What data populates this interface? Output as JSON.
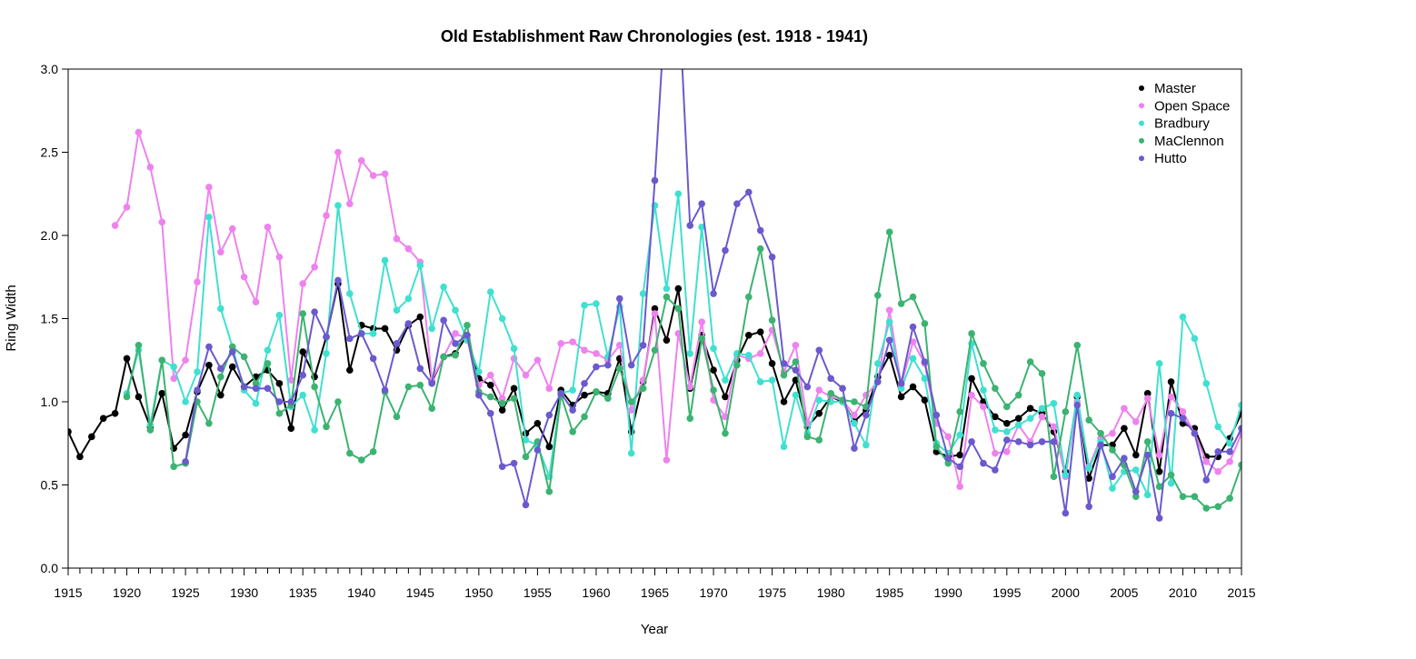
{
  "chart_data": {
    "type": "line",
    "title": "Old Establishment Raw Chronologies (est. 1918 - 1941)",
    "xlabel": "Year",
    "ylabel": "Ring Width",
    "xlim": [
      1915,
      2015
    ],
    "ylim": [
      0.0,
      3.0
    ],
    "x_ticks": [
      1915,
      1916,
      1917,
      1918,
      1919,
      1920,
      1921,
      1922,
      1923,
      1924,
      1925,
      1926,
      1927,
      1928,
      1929,
      1930,
      1931,
      1932,
      1933,
      1934,
      1935,
      1936,
      1937,
      1938,
      1939,
      1940,
      1941,
      1942,
      1943,
      1944,
      1945,
      1946,
      1947,
      1948,
      1949,
      1950,
      1951,
      1952,
      1953,
      1954,
      1955,
      1956,
      1957,
      1958,
      1959,
      1960,
      1961,
      1962,
      1963,
      1964,
      1965,
      1966,
      1967,
      1968,
      1969,
      1970,
      1971,
      1972,
      1973,
      1974,
      1975,
      1976,
      1977,
      1978,
      1979,
      1980,
      1981,
      1982,
      1983,
      1984,
      1985,
      1986,
      1987,
      1988,
      1989,
      1990,
      1991,
      1992,
      1993,
      1994,
      1995,
      1996,
      1997,
      1998,
      1999,
      2000,
      2001,
      2002,
      2003,
      2004,
      2005,
      2006,
      2007,
      2008,
      2009,
      2010,
      2011,
      2012,
      2013,
      2014,
      2015
    ],
    "x_tick_labels": [
      "1915",
      "1920",
      "1925",
      "1930",
      "1935",
      "1940",
      "1945",
      "1950",
      "1955",
      "1960",
      "1965",
      "1970",
      "1975",
      "1980",
      "1985",
      "1990",
      "1995",
      "2000",
      "2005",
      "2010",
      "2015"
    ],
    "y_tick_labels": [
      "0.0",
      "0.5",
      "1.0",
      "1.5",
      "2.0",
      "2.5",
      "3.0"
    ],
    "grid": false,
    "legend_position": "top-right",
    "series": [
      {
        "name": "Master",
        "color": "#000000",
        "start": 1915,
        "values": [
          0.82,
          0.67,
          0.79,
          0.9,
          0.93,
          1.26,
          1.03,
          0.85,
          1.05,
          0.72,
          0.8,
          1.06,
          1.22,
          1.04,
          1.21,
          1.09,
          1.15,
          1.19,
          1.11,
          0.84,
          1.3,
          1.15,
          1.39,
          1.71,
          1.19,
          1.46,
          1.44,
          1.44,
          1.31,
          1.46,
          1.51,
          1.12,
          1.27,
          1.29,
          1.4,
          1.14,
          1.1,
          0.95,
          1.08,
          0.81,
          0.87,
          0.73,
          1.07,
          0.98,
          1.04,
          1.06,
          1.05,
          1.26,
          0.82,
          1.12,
          1.56,
          1.37,
          1.68,
          1.08,
          1.4,
          1.19,
          1.03,
          1.25,
          1.4,
          1.42,
          1.23,
          1.0,
          1.13,
          0.85,
          0.93,
          1.03,
          1.0,
          0.88,
          0.95,
          1.15,
          1.28,
          1.03,
          1.09,
          1.01,
          0.7,
          0.67,
          0.68,
          1.14,
          1.0,
          0.91,
          0.87,
          0.9,
          0.96,
          0.93,
          0.82,
          0.58,
          1.03,
          0.54,
          0.74,
          0.74,
          0.84,
          0.68,
          1.05,
          0.58,
          1.12,
          0.87,
          0.84,
          0.67,
          0.67,
          0.78,
          0.93
        ]
      },
      {
        "name": "Open Space",
        "color": "#ee82ee",
        "start": 1919,
        "values": [
          2.06,
          2.17,
          2.62,
          2.41,
          2.08,
          1.14,
          1.25,
          1.72,
          2.29,
          1.9,
          2.04,
          1.75,
          1.6,
          2.05,
          1.87,
          1.13,
          1.71,
          1.81,
          2.12,
          2.5,
          2.19,
          2.45,
          2.36,
          2.37,
          1.98,
          1.92,
          1.84,
          1.13,
          1.27,
          1.41,
          1.38,
          1.1,
          1.16,
          1.02,
          1.26,
          1.16,
          1.25,
          1.08,
          1.35,
          1.36,
          1.31,
          1.29,
          1.25,
          1.34,
          0.95,
          1.13,
          1.53,
          0.65,
          1.41,
          1.09,
          1.48,
          1.01,
          0.91,
          1.28,
          1.26,
          1.29,
          1.43,
          1.18,
          1.34,
          0.87,
          1.07,
          1.03,
          1.01,
          0.92,
          1.04,
          1.12,
          1.55,
          1.1,
          1.36,
          1.23,
          0.87,
          0.79,
          0.49,
          1.04,
          0.97,
          0.69,
          0.7,
          0.86,
          0.76,
          0.91,
          0.85,
          0.55,
          1.0,
          0.61,
          0.78,
          0.81,
          0.96,
          0.88,
          1.02,
          0.68,
          1.03,
          0.94,
          0.81,
          0.64,
          0.58,
          0.64,
          0.81
        ]
      },
      {
        "name": "Bradbury",
        "color": "#40e0d0",
        "start": 1920,
        "values": [
          1.05,
          1.31,
          0.86,
          1.25,
          1.21,
          1.0,
          1.18,
          2.11,
          1.56,
          1.33,
          1.07,
          0.99,
          1.31,
          1.52,
          0.97,
          1.04,
          0.83,
          1.29,
          2.18,
          1.65,
          1.41,
          1.41,
          1.85,
          1.55,
          1.62,
          1.82,
          1.44,
          1.69,
          1.55,
          1.37,
          1.18,
          1.66,
          1.5,
          1.32,
          0.77,
          0.74,
          0.55,
          1.05,
          1.07,
          1.58,
          1.59,
          1.27,
          1.57,
          0.69,
          1.65,
          2.18,
          1.68,
          2.25,
          1.29,
          2.05,
          1.32,
          1.13,
          1.29,
          1.28,
          1.12,
          1.13,
          0.73,
          1.04,
          0.81,
          1.01,
          1.0,
          1.0,
          0.87,
          0.74,
          1.23,
          1.48,
          1.08,
          1.26,
          1.14,
          0.75,
          0.69,
          0.8,
          1.35,
          1.07,
          0.83,
          0.82,
          0.86,
          0.9,
          0.96,
          0.99,
          0.56,
          1.04,
          0.6,
          0.76,
          0.48,
          0.58,
          0.59,
          0.44,
          1.23,
          0.51,
          1.51,
          1.38,
          1.11,
          0.85,
          0.75,
          0.98,
          1.08
        ]
      },
      {
        "name": "MaClennon",
        "color": "#3cb371",
        "start": 1920,
        "values": [
          1.03,
          1.34,
          0.83,
          1.25,
          0.61,
          0.63,
          1.0,
          0.87,
          1.15,
          1.33,
          1.27,
          1.11,
          1.23,
          0.93,
          0.98,
          1.53,
          1.09,
          0.85,
          1.0,
          0.69,
          0.65,
          0.7,
          1.06,
          0.91,
          1.09,
          1.1,
          0.96,
          1.27,
          1.28,
          1.46,
          1.06,
          1.03,
          0.99,
          1.02,
          0.67,
          0.76,
          0.46,
          1.04,
          0.82,
          0.91,
          1.06,
          1.02,
          1.2,
          1.0,
          1.08,
          1.31,
          1.63,
          1.56,
          0.9,
          1.38,
          1.07,
          0.81,
          1.22,
          1.63,
          1.92,
          1.49,
          1.16,
          1.24,
          0.79,
          0.77,
          1.05,
          1.01,
          1.0,
          0.97,
          1.64,
          2.02,
          1.59,
          1.63,
          1.47,
          0.73,
          0.63,
          0.94,
          1.41,
          1.23,
          1.08,
          0.97,
          1.04,
          1.24,
          1.17,
          0.55,
          0.94,
          1.34,
          0.89,
          0.81,
          0.71,
          0.62,
          0.43,
          0.76,
          0.49,
          0.56,
          0.43,
          0.43,
          0.36,
          0.37,
          0.42,
          0.62
        ]
      },
      {
        "name": "Hutto",
        "color": "#6a5acd",
        "start": 1925,
        "values": [
          0.64,
          1.07,
          1.33,
          1.2,
          1.3,
          1.09,
          1.08,
          1.08,
          1.0,
          1.0,
          1.16,
          1.54,
          1.39,
          1.73,
          1.38,
          1.41,
          1.26,
          1.07,
          1.35,
          1.47,
          1.2,
          1.11,
          1.49,
          1.35,
          1.4,
          1.04,
          0.93,
          0.61,
          0.63,
          0.38,
          0.71,
          0.92,
          1.05,
          0.95,
          1.11,
          1.21,
          1.22,
          1.62,
          1.22,
          1.34,
          2.33,
          3.5,
          3.5,
          2.06,
          2.19,
          1.65,
          1.91,
          2.19,
          2.26,
          2.03,
          1.87,
          1.23,
          1.19,
          1.09,
          1.31,
          1.14,
          1.08,
          0.72,
          0.92,
          1.12,
          1.37,
          1.11,
          1.45,
          1.24,
          0.92,
          0.66,
          0.61,
          0.76,
          0.63,
          0.59,
          0.77,
          0.76,
          0.74,
          0.76,
          0.76,
          0.33,
          0.98,
          0.37,
          0.74,
          0.55,
          0.66,
          0.46,
          0.68,
          0.3,
          0.93,
          0.9,
          0.81,
          0.53,
          0.7,
          0.7,
          0.84
        ]
      }
    ]
  }
}
